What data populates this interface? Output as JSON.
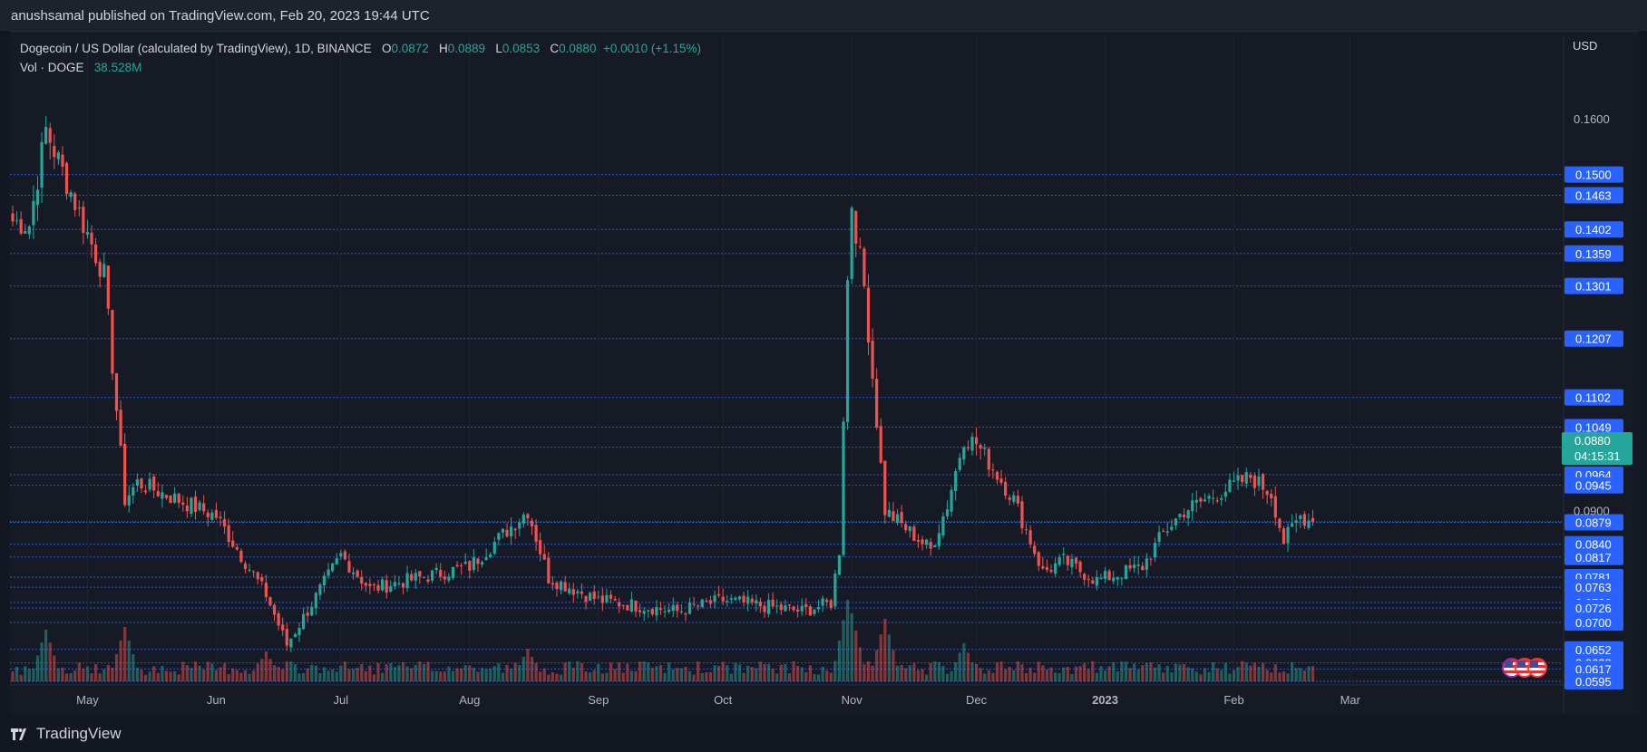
{
  "header": {
    "published": "anushsamal published on TradingView.com, Feb 20, 2023 19:44 UTC"
  },
  "legend": {
    "symbol": "Dogecoin / US Dollar (calculated by TradingView), 1D, BINANCE",
    "open_label": "O",
    "open": "0.0872",
    "high_label": "H",
    "high": "0.0889",
    "low_label": "L",
    "low": "0.0853",
    "close_label": "C",
    "close": "0.0880",
    "change": "+0.0010 (+1.15%)",
    "volume_label": "Vol · DOGE",
    "volume": "38.528M"
  },
  "current_price": {
    "price": "0.0880",
    "countdown": "04:15:31"
  },
  "footer": {
    "logo_text": "TradingView"
  },
  "colors": {
    "up": "#26a69a",
    "down": "#ef5350",
    "level": "#2962ff",
    "bg": "#131722",
    "badge": "#2962ff"
  },
  "chart_data": {
    "type": "candlestick",
    "currency": "USD",
    "y_range": [
      0.0595,
      0.17
    ],
    "x_ticks": [
      "May",
      "Jun",
      "Jul",
      "Aug",
      "Sep",
      "Oct",
      "Nov",
      "Dec",
      "2023",
      "Feb",
      "Mar"
    ],
    "y_ticks": [
      "0.1600",
      "0.0900"
    ],
    "horizontal_levels": [
      "0.1500",
      "0.1463",
      "0.1402",
      "0.1359",
      "0.1301",
      "0.1207",
      "0.1102",
      "0.1049",
      "0.1013",
      "0.0964",
      "0.0945",
      "0.0879",
      "0.0840",
      "0.0817",
      "0.0781",
      "0.0763",
      "0.0736",
      "0.0726",
      "0.0700",
      "0.0652",
      "0.0628",
      "0.0617",
      "0.0595"
    ],
    "key_points": [
      {
        "date": "Apr 17",
        "close": 0.141
      },
      {
        "date": "Apr 21",
        "close": 0.158
      },
      {
        "date": "May 5",
        "close": 0.132
      },
      {
        "date": "May 10",
        "close": 0.092
      },
      {
        "date": "May 13",
        "close": 0.095
      },
      {
        "date": "Jun 1",
        "close": 0.089
      },
      {
        "date": "Jun 13",
        "close": 0.075
      },
      {
        "date": "Jun 18",
        "close": 0.066
      },
      {
        "date": "Jul 1",
        "close": 0.082
      },
      {
        "date": "Jul 8",
        "close": 0.076
      },
      {
        "date": "Aug 1",
        "close": 0.08
      },
      {
        "date": "Aug 15",
        "close": 0.09
      },
      {
        "date": "Aug 20",
        "close": 0.078
      },
      {
        "date": "Sep 1",
        "close": 0.074
      },
      {
        "date": "Sep 20",
        "close": 0.072
      },
      {
        "date": "Oct 1",
        "close": 0.074
      },
      {
        "date": "Oct 20",
        "close": 0.072
      },
      {
        "date": "Oct 27",
        "close": 0.0735
      },
      {
        "date": "Oct 29",
        "close": 0.083
      },
      {
        "date": "Oct 31",
        "close": 0.131
      },
      {
        "date": "Nov 1",
        "close": 0.145
      },
      {
        "date": "Nov 4",
        "close": 0.13
      },
      {
        "date": "Nov 9",
        "close": 0.09
      },
      {
        "date": "Nov 20",
        "close": 0.083
      },
      {
        "date": "Nov 24",
        "close": 0.091
      },
      {
        "date": "Nov 28",
        "close": 0.103
      },
      {
        "date": "Dec 1",
        "close": 0.102
      },
      {
        "date": "Dec 10",
        "close": 0.092
      },
      {
        "date": "Dec 17",
        "close": 0.079
      },
      {
        "date": "Dec 22",
        "close": 0.081
      },
      {
        "date": "Dec 30",
        "close": 0.0775
      },
      {
        "date": "Jan 10",
        "close": 0.08
      },
      {
        "date": "Jan 15",
        "close": 0.086
      },
      {
        "date": "Jan 20",
        "close": 0.09
      },
      {
        "date": "Jan 28",
        "close": 0.093
      },
      {
        "date": "Feb 5",
        "close": 0.096
      },
      {
        "date": "Feb 10",
        "close": 0.093
      },
      {
        "date": "Feb 13",
        "close": 0.0845
      },
      {
        "date": "Feb 17",
        "close": 0.089
      },
      {
        "date": "Feb 20",
        "close": 0.088
      }
    ],
    "volume_spikes": [
      {
        "date": "Apr 21",
        "rel": 0.95
      },
      {
        "date": "May 10",
        "rel": 1.0
      },
      {
        "date": "Jun 13",
        "rel": 0.55
      },
      {
        "date": "Aug 15",
        "rel": 0.6
      },
      {
        "date": "Oct 31",
        "rel": 1.5
      },
      {
        "date": "Nov 1",
        "rel": 1.25
      },
      {
        "date": "Nov 9",
        "rel": 1.15
      },
      {
        "date": "Nov 28",
        "rel": 0.7
      }
    ]
  }
}
